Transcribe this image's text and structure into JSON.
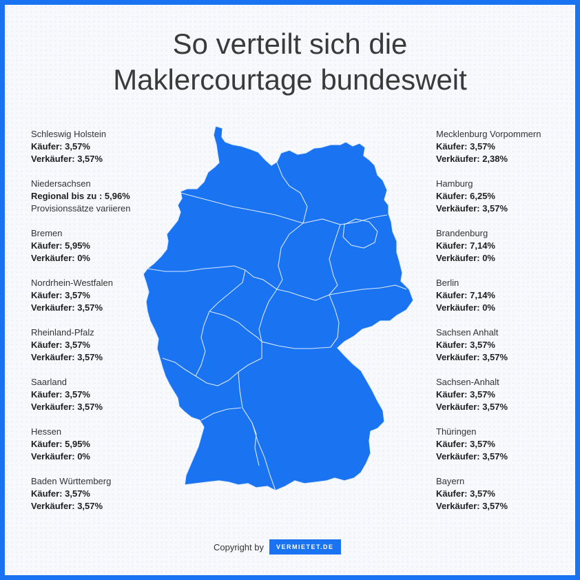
{
  "title": {
    "line1": "So verteilt sich die",
    "line2": "Maklercourtage bundesweit"
  },
  "left": [
    {
      "name": "Schleswig Holstein",
      "line1": "Käufer: 3,57%",
      "line2": "Verkäufer: 3,57%"
    },
    {
      "name": "Niedersachsen",
      "line1": "Regional bis zu : 5,96%",
      "note": "Provisionssätze variieren"
    },
    {
      "name": "Bremen",
      "line1": "Käufer: 5,95%",
      "line2": "Verkäufer: 0%"
    },
    {
      "name": "Nordrhein-Westfalen",
      "line1": "Käufer: 3,57%",
      "line2": "Verkäufer: 3,57%"
    },
    {
      "name": "Rheinland-Pfalz",
      "line1": "Käufer: 3,57%",
      "line2": "Verkäufer: 3,57%"
    },
    {
      "name": "Saarland",
      "line1": "Käufer: 3,57%",
      "line2": "Verkäufer: 3,57%"
    },
    {
      "name": "Hessen",
      "line1": "Käufer: 5,95%",
      "line2": "Verkäufer: 0%"
    },
    {
      "name": "Baden Württemberg",
      "line1": "Käufer: 3,57%",
      "line2": "Verkäufer: 3,57%"
    }
  ],
  "right": [
    {
      "name": "Mecklenburg Vorpommern",
      "line1": "Käufer: 3,57%",
      "line2": "Verkäufer: 2,38%"
    },
    {
      "name": "Hamburg",
      "line1": "Käufer: 6,25%",
      "line2": "Verkäufer: 3,57%"
    },
    {
      "name": "Brandenburg",
      "line1": "Käufer: 7,14%",
      "line2": "Verkäufer: 0%"
    },
    {
      "name": "Berlin",
      "line1": "Käufer: 7,14%",
      "line2": "Verkäufer: 0%"
    },
    {
      "name": "Sachsen Anhalt",
      "line1": "Käufer: 3,57%",
      "line2": "Verkäufer: 3,57%"
    },
    {
      "name": "Sachsen-Anhalt",
      "line1": "Käufer: 3,57%",
      "line2": "Verkäufer: 3,57%"
    },
    {
      "name": "Thüringen",
      "line1": "Käufer: 3,57%",
      "line2": "Verkäufer: 3,57%"
    },
    {
      "name": "Bayern",
      "line1": "Käufer: 3,57%",
      "line2": "Verkäufer: 3,57%"
    }
  ],
  "footer": {
    "copyright": "Copyright by",
    "logo": "VERMIETET.DE"
  },
  "colors": {
    "map_fill": "#1a73f0",
    "border_lines": "#cfe3ff",
    "frame": "#1a73f0"
  },
  "icons": {
    "map": "germany-map-icon",
    "logo": "vermietet-logo"
  }
}
